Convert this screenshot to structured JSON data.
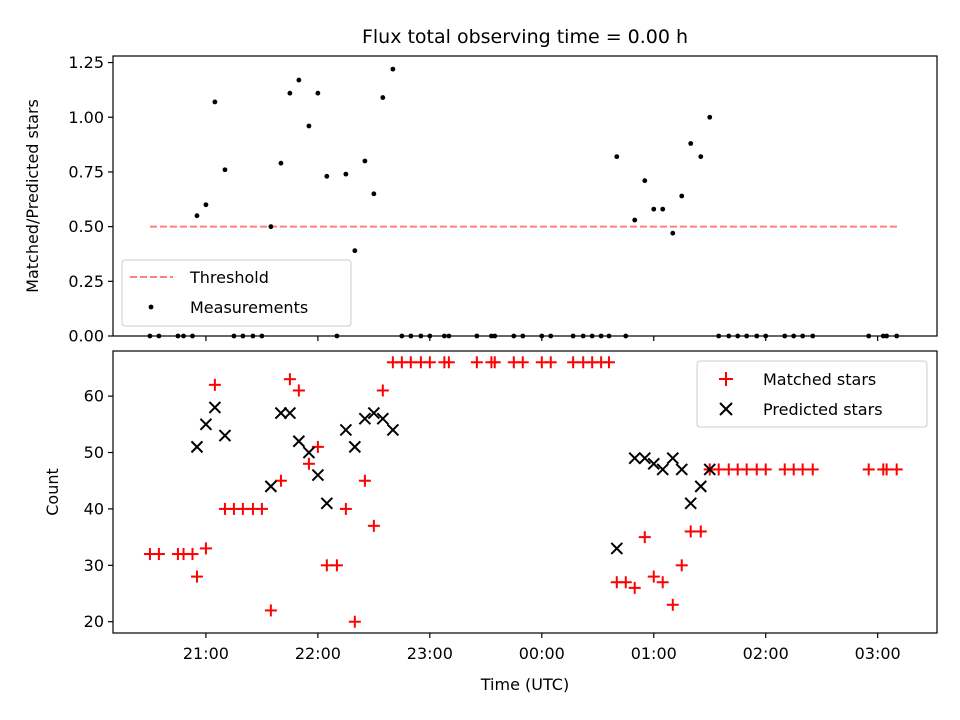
{
  "chart_data": [
    {
      "type": "scatter",
      "title": "Flux total observing time = 0.00 h",
      "xlabel": "",
      "ylabel": "Matched/Predicted stars",
      "xlim": [
        20.17,
        27.53
      ],
      "ylim": [
        0,
        1.28
      ],
      "yticks": [
        0,
        0.25,
        0.5,
        0.75,
        1.0,
        1.25
      ],
      "ytick_labels": [
        "0.00",
        "0.25",
        "0.50",
        "0.75",
        "1.00",
        "1.25"
      ],
      "legend": {
        "position": "bottom-left",
        "entries": [
          "Threshold",
          "Measurements"
        ]
      },
      "colors": {
        "threshold": "#ff7f7f",
        "measurements": "#000000"
      },
      "threshold": {
        "name": "Threshold",
        "y": 0.5,
        "x": [
          20.5,
          27.2
        ]
      },
      "measurements": {
        "name": "Measurements",
        "x": [
          20.5,
          20.58,
          20.75,
          20.8,
          20.88,
          20.92,
          21.0,
          21.08,
          21.17,
          21.25,
          21.33,
          21.42,
          21.5,
          21.58,
          21.67,
          21.75,
          21.83,
          21.92,
          22.0,
          22.08,
          22.17,
          22.25,
          22.33,
          22.42,
          22.5,
          22.58,
          22.67,
          22.75,
          22.83,
          22.92,
          23.0,
          23.13,
          23.17,
          23.42,
          23.55,
          23.58,
          23.75,
          23.83,
          24.0,
          24.08,
          24.28,
          24.37,
          24.45,
          24.53,
          24.6,
          24.67,
          24.75,
          24.83,
          24.92,
          25.0,
          25.08,
          25.17,
          25.25,
          25.33,
          25.42,
          25.5,
          25.58,
          25.67,
          25.75,
          25.83,
          25.92,
          26.0,
          26.17,
          26.25,
          26.33,
          26.42,
          26.92,
          27.05,
          27.08,
          27.17
        ],
        "y": [
          0.0,
          0.0,
          0.0,
          0.0,
          0.0,
          0.55,
          0.6,
          1.07,
          0.76,
          0.0,
          0.0,
          0.0,
          0.0,
          0.5,
          0.79,
          1.11,
          1.17,
          0.96,
          1.11,
          0.73,
          0.0,
          0.74,
          0.39,
          0.8,
          0.65,
          1.09,
          1.22,
          0.0,
          0.0,
          0.0,
          0.0,
          0.0,
          0.0,
          0.0,
          0.0,
          0.0,
          0.0,
          0.0,
          0.0,
          0.0,
          0.0,
          0.0,
          0.0,
          0.0,
          0.0,
          0.82,
          0.0,
          0.53,
          0.71,
          0.58,
          0.58,
          0.47,
          0.64,
          0.88,
          0.82,
          1.0,
          0.0,
          0.0,
          0.0,
          0.0,
          0.0,
          0.0,
          0.0,
          0.0,
          0.0,
          0.0,
          0.0,
          0.0,
          0.0,
          0.0
        ]
      }
    },
    {
      "type": "scatter",
      "title": "",
      "xlabel": "Time (UTC)",
      "ylabel": "Count",
      "xlim": [
        20.17,
        27.53
      ],
      "ylim": [
        18,
        68
      ],
      "yticks": [
        20,
        30,
        40,
        50,
        60
      ],
      "ytick_labels": [
        "20",
        "30",
        "40",
        "50",
        "60"
      ],
      "xticks": [
        21,
        22,
        23,
        24,
        25,
        26,
        27
      ],
      "xtick_labels": [
        "21:00",
        "22:00",
        "23:00",
        "00:00",
        "01:00",
        "02:00",
        "03:00"
      ],
      "legend": {
        "position": "top-right",
        "entries": [
          "Matched stars",
          "Predicted stars"
        ]
      },
      "colors": {
        "matched": "#ff0000",
        "predicted": "#000000"
      },
      "matched": {
        "name": "Matched stars",
        "x": [
          20.5,
          20.58,
          20.75,
          20.8,
          20.88,
          20.92,
          21.0,
          21.08,
          21.17,
          21.25,
          21.33,
          21.42,
          21.5,
          21.58,
          21.67,
          21.75,
          21.83,
          21.92,
          22.0,
          22.08,
          22.17,
          22.25,
          22.33,
          22.42,
          22.5,
          22.58,
          22.67,
          22.75,
          22.83,
          22.92,
          23.0,
          23.13,
          23.17,
          23.42,
          23.55,
          23.58,
          23.75,
          23.83,
          24.0,
          24.08,
          24.28,
          24.37,
          24.45,
          24.53,
          24.6,
          24.67,
          24.75,
          24.83,
          24.92,
          25.0,
          25.08,
          25.17,
          25.25,
          25.33,
          25.42,
          25.5,
          25.58,
          25.67,
          25.75,
          25.83,
          25.92,
          26.0,
          26.17,
          26.25,
          26.33,
          26.42,
          26.92,
          27.05,
          27.08,
          27.17
        ],
        "y": [
          32,
          32,
          32,
          32,
          32,
          28,
          33,
          62,
          40,
          40,
          40,
          40,
          40,
          22,
          45,
          63,
          61,
          48,
          51,
          30,
          30,
          40,
          20,
          45,
          37,
          61,
          66,
          66,
          66,
          66,
          66,
          66,
          66,
          66,
          66,
          66,
          66,
          66,
          66,
          66,
          66,
          66,
          66,
          66,
          66,
          27,
          27,
          26,
          35,
          28,
          27,
          23,
          30,
          36,
          36,
          47,
          47,
          47,
          47,
          47,
          47,
          47,
          47,
          47,
          47,
          47,
          47,
          47,
          47,
          47
        ]
      },
      "predicted": {
        "name": "Predicted stars",
        "x": [
          20.92,
          21.0,
          21.08,
          21.17,
          21.58,
          21.67,
          21.75,
          21.83,
          21.92,
          22.0,
          22.08,
          22.25,
          22.33,
          22.42,
          22.5,
          22.58,
          22.67,
          24.67,
          24.83,
          24.92,
          25.0,
          25.08,
          25.17,
          25.25,
          25.33,
          25.42,
          25.5
        ],
        "y": [
          51,
          55,
          58,
          53,
          44,
          57,
          57,
          52,
          50,
          46,
          41,
          54,
          51,
          56,
          57,
          56,
          54,
          33,
          49,
          49,
          48,
          47,
          49,
          47,
          41,
          44,
          47
        ]
      }
    }
  ]
}
